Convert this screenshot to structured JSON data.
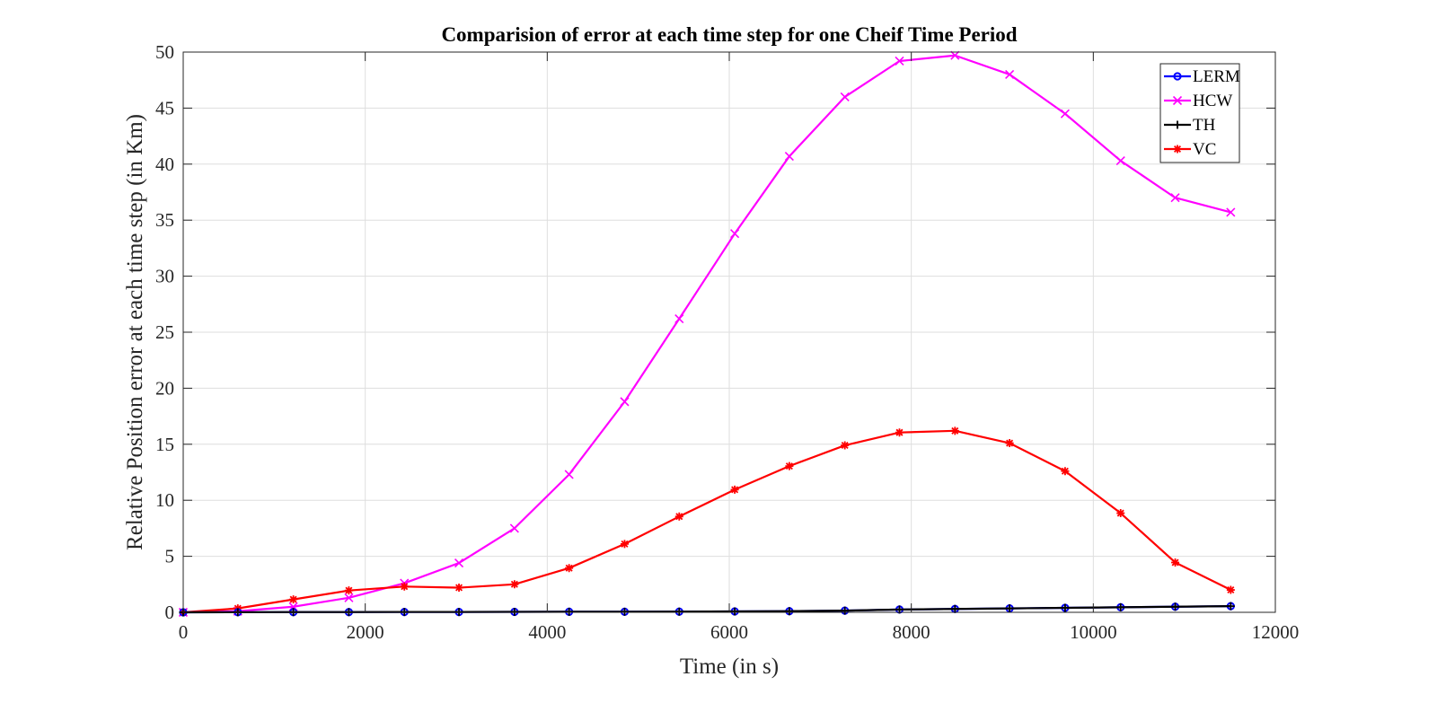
{
  "chart_data": {
    "type": "line",
    "title": "Comparision of error at each time step for one Cheif Time Period",
    "xlabel": "Time (in s)",
    "ylabel": "Relative Position error at each time step (in Km)",
    "xlim": [
      0,
      12000
    ],
    "ylim": [
      0,
      50
    ],
    "xticks": [
      0,
      2000,
      4000,
      6000,
      8000,
      10000,
      12000
    ],
    "yticks": [
      0,
      5,
      10,
      15,
      20,
      25,
      30,
      35,
      40,
      45,
      50
    ],
    "grid": true,
    "legend_position": "top-right",
    "x": [
      0,
      600,
      1210,
      1820,
      2430,
      3030,
      3640,
      4240,
      4850,
      5450,
      6060,
      6660,
      7270,
      7870,
      8480,
      9080,
      9690,
      10300,
      10900,
      11510
    ],
    "series": [
      {
        "name": "LERM",
        "color": "#0000ff",
        "marker": "circle",
        "values": [
          0,
          0.01,
          0.02,
          0.02,
          0.03,
          0.03,
          0.04,
          0.05,
          0.05,
          0.06,
          0.08,
          0.1,
          0.15,
          0.25,
          0.3,
          0.35,
          0.4,
          0.45,
          0.5,
          0.55
        ]
      },
      {
        "name": "HCW",
        "color": "#ff00ff",
        "marker": "x",
        "values": [
          0,
          0.1,
          0.5,
          1.3,
          2.6,
          4.4,
          7.5,
          12.3,
          18.8,
          26.2,
          33.8,
          40.7,
          46.0,
          49.2,
          49.7,
          48.0,
          44.5,
          40.3,
          37.0,
          35.7
        ]
      },
      {
        "name": "TH",
        "color": "#000000",
        "marker": "plus",
        "values": [
          0,
          0.01,
          0.02,
          0.02,
          0.03,
          0.03,
          0.04,
          0.05,
          0.05,
          0.06,
          0.08,
          0.1,
          0.15,
          0.25,
          0.3,
          0.35,
          0.4,
          0.45,
          0.5,
          0.55
        ]
      },
      {
        "name": "VC",
        "color": "#ff0000",
        "marker": "star",
        "values": [
          0,
          0.35,
          1.15,
          1.95,
          2.3,
          2.2,
          2.5,
          3.95,
          6.1,
          8.55,
          10.95,
          13.05,
          14.9,
          16.05,
          16.2,
          15.1,
          12.6,
          8.85,
          4.45,
          2.0
        ]
      }
    ]
  }
}
